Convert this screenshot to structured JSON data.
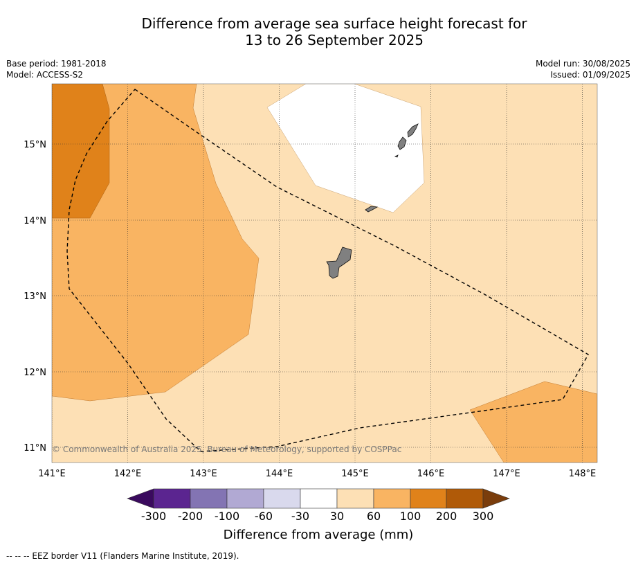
{
  "header": {
    "title_line1": "Difference from average sea surface height forecast for",
    "title_line2": "13 to 26 September 2025",
    "base_period": "Base period: 1981-2018",
    "model": "Model: ACCESS-S2",
    "model_run": "Model run: 30/08/2025",
    "issued": "Issued: 01/09/2025"
  },
  "map": {
    "lon_labels": [
      "141°E",
      "142°E",
      "143°E",
      "144°E",
      "145°E",
      "146°E",
      "147°E",
      "148°E"
    ],
    "lat_labels": [
      "15°N",
      "14°N",
      "13°N",
      "12°N",
      "11°N"
    ],
    "copyright": "© Commonwealth of Australia 2025, Bureau of Meteorology, supported by COSPPac",
    "land_color": "#808080",
    "boundary_style": "dashed black"
  },
  "colorbar": {
    "ticks": [
      "-300",
      "-200",
      "-100",
      "-60",
      "-30",
      "30",
      "60",
      "100",
      "200",
      "300"
    ],
    "colors": [
      "#3a0a5e",
      "#5b2590",
      "#8374b3",
      "#b1a9d3",
      "#d9d9ed",
      "#ffffff",
      "#fde0b5",
      "#f9b462",
      "#e0821a",
      "#b05a08",
      "#7a3d0c"
    ],
    "title": "Difference from average (mm)"
  },
  "footer": {
    "text": "--  --  -- EEZ border V11 (Flanders Marine Institute, 2019)."
  }
}
